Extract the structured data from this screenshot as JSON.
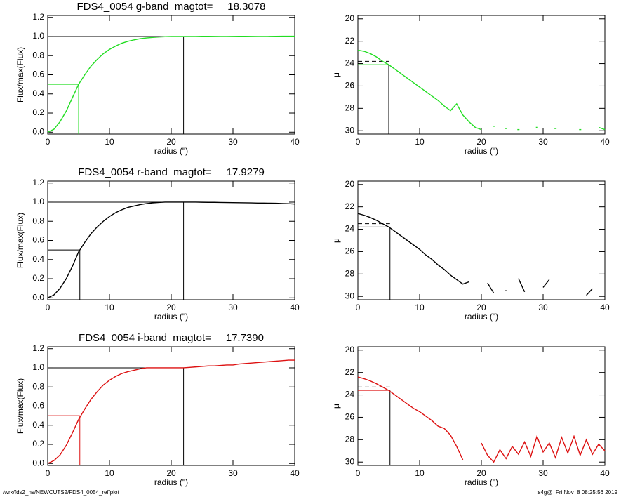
{
  "chart_data": [
    {
      "type": "line",
      "title": "FDS4_0054 g-band  magtot=     18.3078",
      "xlabel": "radius (\")",
      "ylabel": "Flux/max(Flux)",
      "color": "#22dd22",
      "x": [
        0,
        1,
        2,
        3,
        4,
        5,
        6,
        7,
        8,
        9,
        10,
        11,
        12,
        13,
        14,
        15,
        16,
        17,
        18,
        19,
        20,
        21,
        22,
        23,
        24,
        25,
        26,
        27,
        28,
        29,
        30,
        31,
        32,
        33,
        34,
        35,
        36,
        37,
        38,
        39,
        40
      ],
      "values": [
        0,
        0.03,
        0.11,
        0.22,
        0.36,
        0.5,
        0.6,
        0.69,
        0.76,
        0.82,
        0.865,
        0.9,
        0.93,
        0.95,
        0.965,
        0.977,
        0.985,
        0.99,
        0.995,
        0.998,
        1.0,
        1.0,
        1.0,
        1.0,
        1.0,
        1.002,
        1.002,
        1.001,
        1.0,
        1.0,
        1.001,
        1.002,
        1.002,
        1.001,
        1.0,
        1.0,
        1.001,
        1.002,
        1.003,
        1.003,
        1.003
      ],
      "ref_radius": 5.0,
      "ref_level": 0.5,
      "total_radius": 22.0,
      "total_level": 1.0,
      "xlim": [
        0,
        40
      ],
      "xticks": [
        0,
        10,
        20,
        30,
        40
      ],
      "ylim": [
        -0.02,
        1.22
      ],
      "yticks": [
        {
          "value": 0,
          "label": "0.0"
        },
        0.2,
        0.4,
        0.6,
        0.8,
        {
          "value": 1,
          "label": "1.0"
        },
        1.2
      ]
    },
    {
      "type": "line",
      "xlabel": "radius (\")",
      "ylabel": "μ",
      "color": "#22dd22",
      "x": [
        0,
        1,
        2,
        3,
        4,
        5,
        6,
        7,
        8,
        9,
        10,
        11,
        12,
        13,
        14,
        15,
        16,
        17,
        18,
        19,
        20,
        21,
        22,
        23,
        24,
        25,
        26,
        27,
        28,
        29,
        30,
        31,
        32,
        33,
        34,
        35,
        36,
        37,
        38,
        39,
        40
      ],
      "values": [
        22.8,
        22.9,
        23.1,
        23.4,
        23.8,
        24.1,
        24.5,
        24.9,
        25.3,
        25.7,
        26.1,
        26.5,
        26.9,
        27.3,
        27.8,
        28.2,
        27.6,
        28.6,
        29.2,
        29.7,
        29.9,
        null,
        29.6,
        null,
        29.8,
        null,
        29.9,
        null,
        null,
        29.7,
        null,
        null,
        29.8,
        null,
        null,
        null,
        29.9,
        null,
        null,
        29.7,
        29.9
      ],
      "ref_radius": 5.0,
      "ref_level": 24.1,
      "mean_level": 23.8,
      "xlim": [
        0,
        40
      ],
      "xticks": [
        0,
        10,
        20,
        30,
        40
      ],
      "ylim": [
        30.3,
        19.7
      ],
      "yticks": [
        20,
        22,
        24,
        26,
        28,
        30
      ]
    },
    {
      "type": "line",
      "title": "FDS4_0054 r-band  magtot=     17.9279",
      "xlabel": "radius (\")",
      "ylabel": "Flux/max(Flux)",
      "color": "#000000",
      "x": [
        0,
        1,
        2,
        3,
        4,
        5,
        6,
        7,
        8,
        9,
        10,
        11,
        12,
        13,
        14,
        15,
        16,
        17,
        18,
        19,
        20,
        21,
        22,
        23,
        24,
        25,
        26,
        27,
        28,
        29,
        30,
        31,
        32,
        33,
        34,
        35,
        36,
        37,
        38,
        39,
        40
      ],
      "values": [
        0,
        0.03,
        0.1,
        0.2,
        0.33,
        0.48,
        0.58,
        0.67,
        0.74,
        0.8,
        0.85,
        0.89,
        0.92,
        0.945,
        0.96,
        0.975,
        0.985,
        0.992,
        0.997,
        1.0,
        1.0,
        1.0,
        1.0,
        1.0,
        1.0,
        0.999,
        0.998,
        0.998,
        0.997,
        0.996,
        0.995,
        0.994,
        0.993,
        0.992,
        0.99,
        0.99,
        0.989,
        0.988,
        0.986,
        0.984,
        0.98
      ],
      "ref_radius": 5.2,
      "ref_level": 0.5,
      "total_radius": 22.0,
      "total_level": 1.0,
      "xlim": [
        0,
        40
      ],
      "xticks": [
        0,
        10,
        20,
        30,
        40
      ],
      "ylim": [
        -0.02,
        1.22
      ],
      "yticks": [
        {
          "value": 0,
          "label": "0.0"
        },
        0.2,
        0.4,
        0.6,
        0.8,
        {
          "value": 1,
          "label": "1.0"
        },
        1.2
      ]
    },
    {
      "type": "line",
      "xlabel": "radius (\")",
      "ylabel": "μ",
      "color": "#000000",
      "x": [
        0,
        1,
        2,
        3,
        4,
        5,
        6,
        7,
        8,
        9,
        10,
        11,
        12,
        13,
        14,
        15,
        16,
        17,
        18,
        19,
        20,
        21,
        22,
        23,
        24,
        25,
        26,
        27,
        28,
        29,
        30,
        31,
        32,
        33,
        34,
        35,
        36,
        37,
        38,
        39,
        40
      ],
      "values": [
        22.6,
        22.75,
        22.95,
        23.2,
        23.5,
        23.8,
        24.2,
        24.6,
        25.0,
        25.4,
        25.8,
        26.3,
        26.7,
        27.2,
        27.6,
        28.1,
        28.5,
        28.9,
        28.7,
        null,
        null,
        28.8,
        29.7,
        null,
        29.5,
        null,
        28.4,
        29.6,
        null,
        null,
        29.2,
        28.5,
        null,
        null,
        null,
        null,
        null,
        29.9,
        29.3,
        null,
        null
      ],
      "ref_radius": 5.2,
      "ref_level": 23.8,
      "mean_level": 23.5,
      "xlim": [
        0,
        40
      ],
      "xticks": [
        0,
        10,
        20,
        30,
        40
      ],
      "ylim": [
        30.3,
        19.7
      ],
      "yticks": [
        20,
        22,
        24,
        26,
        28,
        30
      ]
    },
    {
      "type": "line",
      "title": "FDS4_0054 i-band  magtot=     17.7390",
      "xlabel": "radius (\")",
      "ylabel": "Flux/max(Flux)",
      "color": "#dd1111",
      "x": [
        0,
        1,
        2,
        3,
        4,
        5,
        6,
        7,
        8,
        9,
        10,
        11,
        12,
        13,
        14,
        15,
        16,
        17,
        18,
        19,
        20,
        21,
        22,
        23,
        24,
        25,
        26,
        27,
        28,
        29,
        30,
        31,
        32,
        33,
        34,
        35,
        36,
        37,
        38,
        39,
        40
      ],
      "values": [
        0,
        0.03,
        0.09,
        0.19,
        0.32,
        0.46,
        0.57,
        0.67,
        0.75,
        0.82,
        0.87,
        0.91,
        0.94,
        0.96,
        0.975,
        0.99,
        1.0,
        1.0,
        1.0,
        1.0,
        1.0,
        1.0,
        1.0,
        1.005,
        1.01,
        1.015,
        1.02,
        1.02,
        1.025,
        1.03,
        1.03,
        1.04,
        1.045,
        1.05,
        1.055,
        1.06,
        1.065,
        1.07,
        1.075,
        1.08,
        1.08
      ],
      "ref_radius": 5.2,
      "ref_level": 0.5,
      "total_radius": 22.0,
      "total_level": 1.0,
      "xlim": [
        0,
        40
      ],
      "xticks": [
        0,
        10,
        20,
        30,
        40
      ],
      "ylim": [
        -0.02,
        1.22
      ],
      "yticks": [
        {
          "value": 0,
          "label": "0.0"
        },
        0.2,
        0.4,
        0.6,
        0.8,
        {
          "value": 1,
          "label": "1.0"
        },
        1.2
      ]
    },
    {
      "type": "line",
      "xlabel": "radius (\")",
      "ylabel": "μ",
      "color": "#dd1111",
      "x": [
        0,
        1,
        2,
        3,
        4,
        5,
        6,
        7,
        8,
        9,
        10,
        11,
        12,
        13,
        14,
        15,
        16,
        17,
        18,
        19,
        20,
        21,
        22,
        23,
        24,
        25,
        26,
        27,
        28,
        29,
        30,
        31,
        32,
        33,
        34,
        35,
        36,
        37,
        38,
        39,
        40
      ],
      "values": [
        22.4,
        22.55,
        22.75,
        23.0,
        23.3,
        23.6,
        24.0,
        24.4,
        24.8,
        25.2,
        25.5,
        25.9,
        26.3,
        26.8,
        27.0,
        27.6,
        28.6,
        29.8,
        null,
        null,
        28.3,
        29.4,
        30.0,
        28.9,
        29.7,
        28.6,
        29.3,
        28.2,
        29.5,
        27.7,
        29.1,
        28.3,
        29.6,
        27.8,
        29.2,
        27.7,
        29.4,
        28.0,
        29.3,
        28.4,
        29.0
      ],
      "ref_radius": 5.2,
      "ref_level": 23.6,
      "mean_level": 23.3,
      "xlim": [
        0,
        40
      ],
      "xticks": [
        0,
        10,
        20,
        30,
        40
      ],
      "ylim": [
        30.3,
        19.7
      ],
      "yticks": [
        20,
        22,
        24,
        26,
        28,
        30
      ]
    }
  ],
  "footer": {
    "left": "/wrk/fds2_hs/NEWCUTS2/FDS4_0054_reffplot",
    "right": "s4g@  Fri Nov  8 08:25:56 2019"
  }
}
